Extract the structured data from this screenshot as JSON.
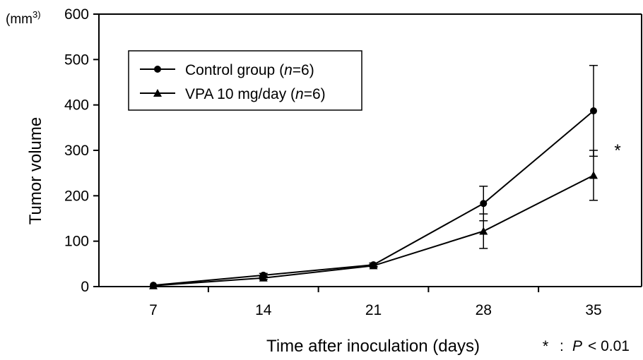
{
  "chart_data": {
    "type": "line",
    "title": "",
    "xlabel": "Time after inoculation (days)",
    "ylabel": "Tumor volume",
    "y_unit_main": "(mm",
    "y_unit_sup": "3)",
    "x": [
      7,
      14,
      21,
      28,
      35
    ],
    "xtick_labels": [
      "7",
      "14",
      "21",
      "28",
      "35"
    ],
    "ylim": [
      0,
      600
    ],
    "yticks": [
      0,
      100,
      200,
      300,
      400,
      500,
      600
    ],
    "grid": false,
    "legend_position": "top-left",
    "series": [
      {
        "name": "Control group (n=6)",
        "name_prefix": "Control group (",
        "name_var": "n",
        "name_suffix": "=6)",
        "marker": "circle",
        "values": [
          3,
          25,
          48,
          183,
          387
        ],
        "error": [
          1,
          4,
          4,
          38,
          100
        ]
      },
      {
        "name": "VPA 10 mg/day (n=6)",
        "name_prefix": "VPA 10 mg/day (",
        "name_var": "n",
        "name_suffix": "=6)",
        "marker": "triangle",
        "values": [
          2,
          19,
          46,
          122,
          245
        ],
        "error": [
          1,
          3,
          3,
          38,
          55
        ]
      }
    ],
    "significance_marker": "*",
    "footnote": {
      "star": "*",
      "separator": ":",
      "variable": "P",
      "condition": "< 0.01"
    }
  },
  "colors": {
    "line": "#000000",
    "background": "#ffffff"
  }
}
